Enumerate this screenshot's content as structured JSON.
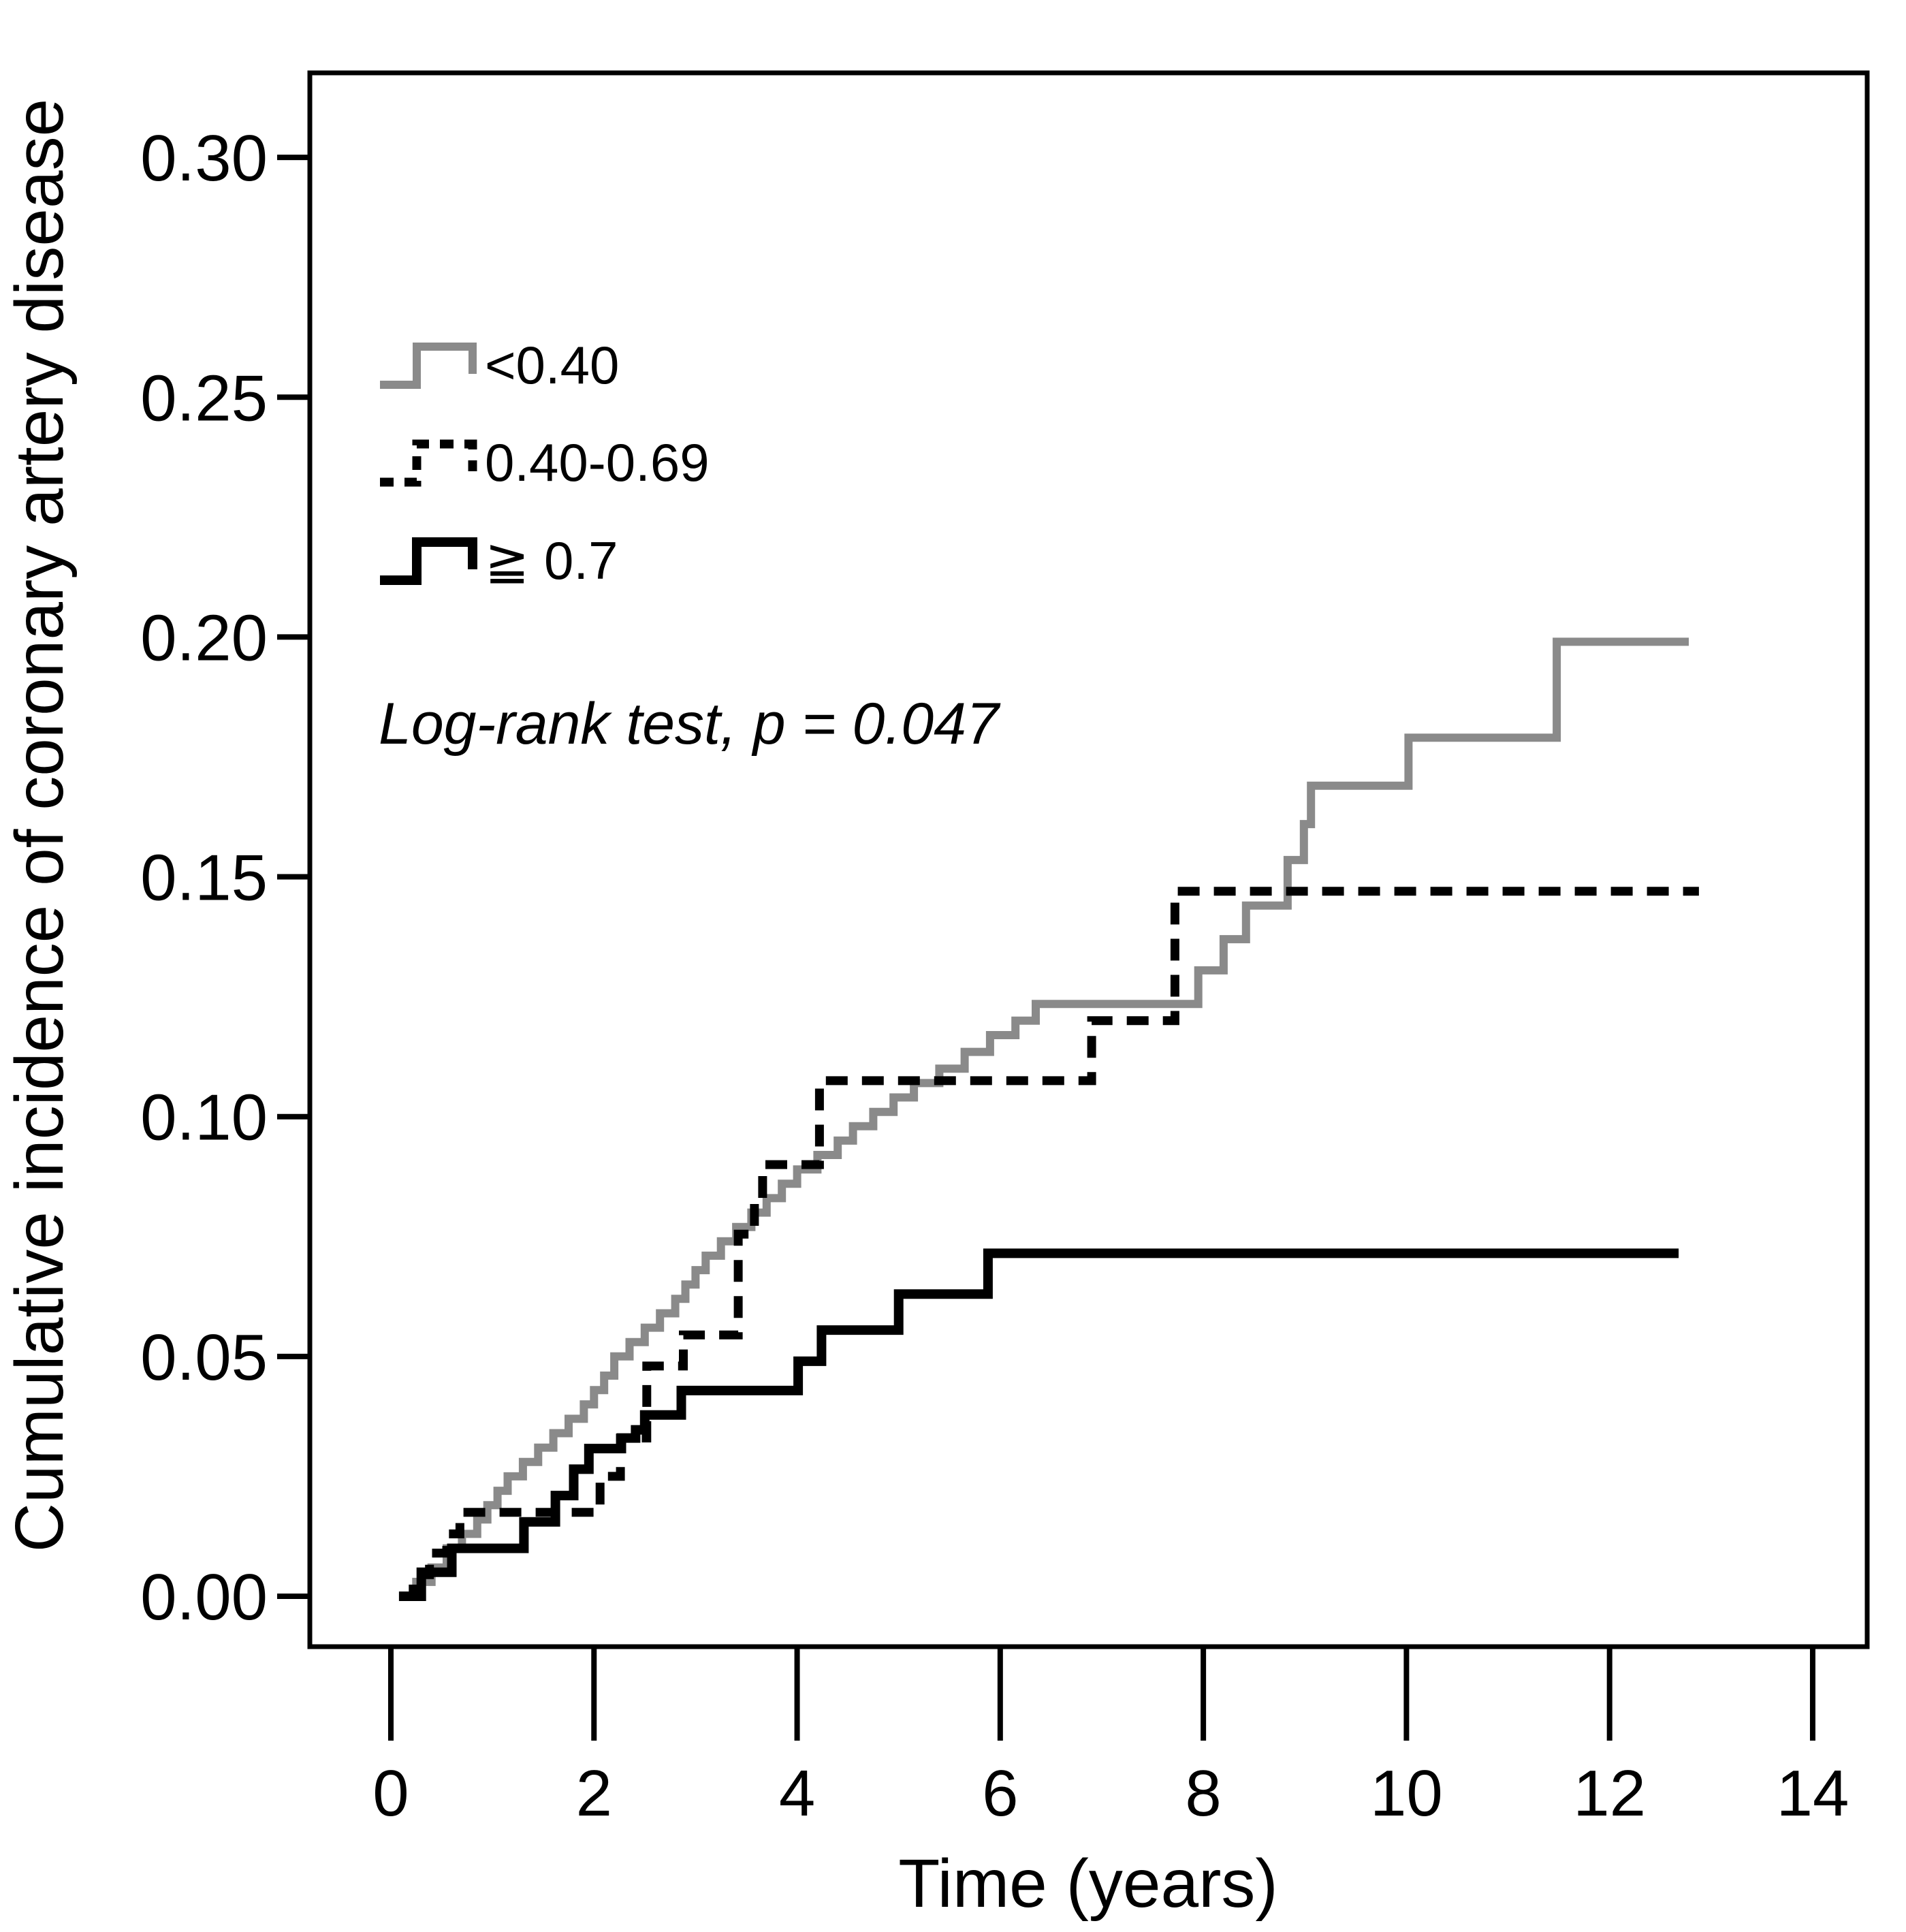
{
  "figure": {
    "background": "#ffffff",
    "frame_color": "#000000"
  },
  "chart_data": {
    "type": "line",
    "subtype": "step-cumulative-incidence",
    "title": "",
    "xlabel": "Time (years)",
    "ylabel": "Cumulative incidence of coronary artery disease",
    "annotation": "Log-rank test, p = 0.047",
    "xlim": [
      -0.8,
      14.55
    ],
    "ylim": [
      -0.0105,
      0.3175
    ],
    "xticks": [
      0,
      2,
      4,
      6,
      8,
      10,
      12,
      14
    ],
    "yticks": [
      "0.00",
      "0.05",
      "0.10",
      "0.15",
      "0.20",
      "0.25",
      "0.30"
    ],
    "grid": false,
    "legend_position": "upper-left-inside",
    "series": [
      {
        "name": "<0.40",
        "color": "#8a8a8a",
        "style": "solid",
        "width": 12,
        "end_x": 12.78,
        "points": [
          [
            0.1,
            0.0
          ],
          [
            0.25,
            0.003
          ],
          [
            0.4,
            0.006
          ],
          [
            0.55,
            0.01
          ],
          [
            0.7,
            0.013
          ],
          [
            0.85,
            0.016
          ],
          [
            0.95,
            0.019
          ],
          [
            1.05,
            0.022
          ],
          [
            1.15,
            0.025
          ],
          [
            1.3,
            0.028
          ],
          [
            1.45,
            0.031
          ],
          [
            1.6,
            0.034
          ],
          [
            1.75,
            0.037
          ],
          [
            1.9,
            0.04
          ],
          [
            2.0,
            0.043
          ],
          [
            2.1,
            0.046
          ],
          [
            2.2,
            0.05
          ],
          [
            2.35,
            0.053
          ],
          [
            2.5,
            0.056
          ],
          [
            2.65,
            0.059
          ],
          [
            2.8,
            0.062
          ],
          [
            2.9,
            0.065
          ],
          [
            3.0,
            0.068
          ],
          [
            3.1,
            0.071
          ],
          [
            3.25,
            0.074
          ],
          [
            3.4,
            0.077
          ],
          [
            3.55,
            0.08
          ],
          [
            3.7,
            0.083
          ],
          [
            3.85,
            0.086
          ],
          [
            4.0,
            0.089
          ],
          [
            4.2,
            0.092
          ],
          [
            4.4,
            0.095
          ],
          [
            4.55,
            0.098
          ],
          [
            4.75,
            0.101
          ],
          [
            4.95,
            0.104
          ],
          [
            5.15,
            0.107
          ],
          [
            5.4,
            0.11
          ],
          [
            5.65,
            0.1135
          ],
          [
            5.9,
            0.117
          ],
          [
            6.15,
            0.12
          ],
          [
            6.35,
            0.1235
          ],
          [
            7.95,
            0.1305
          ],
          [
            8.2,
            0.137
          ],
          [
            8.42,
            0.144
          ],
          [
            8.83,
            0.1535
          ],
          [
            8.99,
            0.161
          ],
          [
            9.06,
            0.169
          ],
          [
            10.02,
            0.179
          ],
          [
            11.48,
            0.199
          ]
        ]
      },
      {
        "name": "0.40-0.69",
        "color": "#000000",
        "style": "dashed",
        "width": 13,
        "end_x": 12.88,
        "points": [
          [
            0.12,
            0.0
          ],
          [
            0.22,
            0.0045
          ],
          [
            0.38,
            0.009
          ],
          [
            0.55,
            0.013
          ],
          [
            0.68,
            0.0175
          ],
          [
            2.06,
            0.025
          ],
          [
            2.26,
            0.033
          ],
          [
            2.52,
            0.048
          ],
          [
            2.88,
            0.0545
          ],
          [
            3.42,
            0.0755
          ],
          [
            3.58,
            0.083
          ],
          [
            3.66,
            0.09
          ],
          [
            4.22,
            0.1075
          ],
          [
            6.9,
            0.12
          ],
          [
            7.72,
            0.147
          ]
        ]
      },
      {
        "name": "≧ 0.7",
        "color": "#000000",
        "style": "solid",
        "width": 14,
        "end_x": 12.68,
        "points": [
          [
            0.08,
            0.0
          ],
          [
            0.3,
            0.005
          ],
          [
            0.6,
            0.01
          ],
          [
            1.31,
            0.0155
          ],
          [
            1.62,
            0.021
          ],
          [
            1.8,
            0.0265
          ],
          [
            1.95,
            0.0308
          ],
          [
            2.27,
            0.033
          ],
          [
            2.41,
            0.0347
          ],
          [
            2.5,
            0.0378
          ],
          [
            2.86,
            0.0429
          ],
          [
            4.01,
            0.049
          ],
          [
            4.24,
            0.0555
          ],
          [
            5.0,
            0.063
          ],
          [
            5.88,
            0.0715
          ]
        ]
      }
    ]
  }
}
